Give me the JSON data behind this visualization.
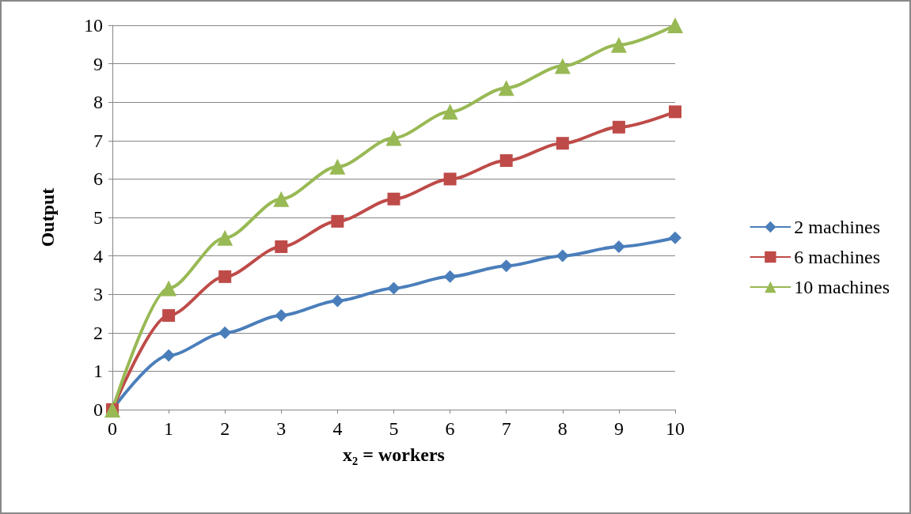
{
  "chart_data": {
    "type": "line",
    "xlabel": "x₂ = workers",
    "ylabel": "Output",
    "x": [
      0,
      1,
      2,
      3,
      4,
      5,
      6,
      7,
      8,
      9,
      10
    ],
    "series": [
      {
        "name": "2 machines",
        "color": "#4a7ebb",
        "marker": "diamond",
        "values": [
          0,
          1.41,
          2,
          2.45,
          2.83,
          3.16,
          3.46,
          3.74,
          4,
          4.24,
          4.47
        ]
      },
      {
        "name": "6 machines",
        "color": "#be4b48",
        "marker": "square",
        "values": [
          0,
          2.45,
          3.46,
          4.24,
          4.9,
          5.48,
          6,
          6.48,
          6.93,
          7.35,
          7.75
        ]
      },
      {
        "name": "10 machines",
        "color": "#98b954",
        "marker": "triangle",
        "values": [
          0,
          3.16,
          4.47,
          5.48,
          6.32,
          7.07,
          7.75,
          8.37,
          8.94,
          9.49,
          10
        ]
      }
    ],
    "xlim": [
      0,
      10
    ],
    "xticks": [
      0,
      1,
      2,
      3,
      4,
      5,
      6,
      7,
      8,
      9,
      10
    ],
    "ylim": [
      0,
      10
    ],
    "yticks": [
      0,
      1,
      2,
      3,
      4,
      5,
      6,
      7,
      8,
      9,
      10
    ],
    "grid": "y",
    "legend": "right",
    "line_style": "solid"
  }
}
